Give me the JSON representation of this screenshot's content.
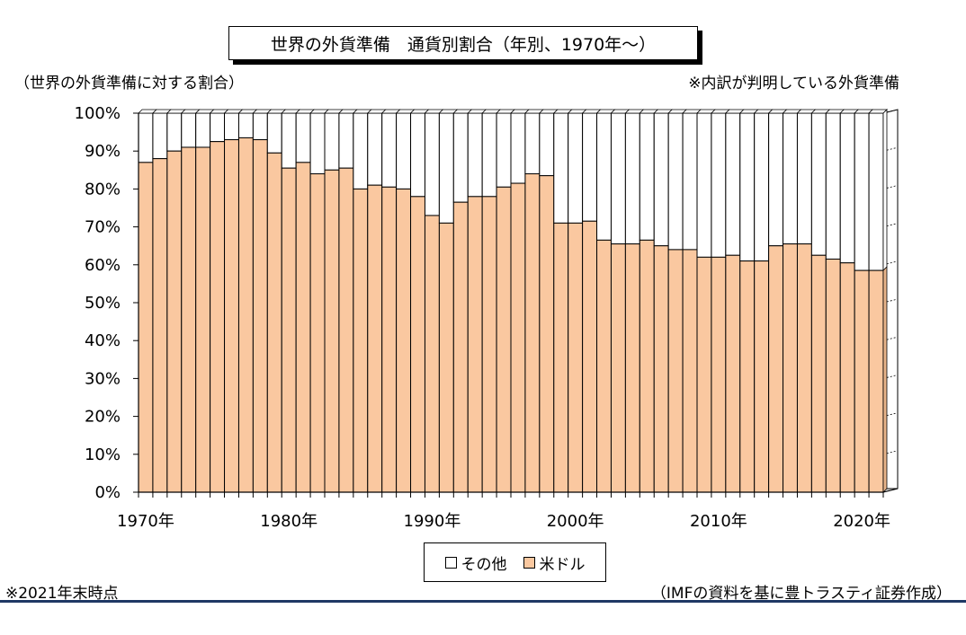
{
  "title": "世界の外貨準備　通貨別割合（年別、1970年～）",
  "subtitle": "（世界の外貨準備に対する割合）",
  "note_right": "※内訳が判明している外貨準備",
  "footnote_left": "※2021年末時点",
  "footnote_right": "（IMFの資料を基に豊トラスティ証券作成）",
  "colors": {
    "usd": "#fac8a0",
    "other": "#ffffff",
    "rule": "#1f3864"
  },
  "chart_data": {
    "type": "bar",
    "stacked": true,
    "normalized_100": true,
    "ylim": [
      0,
      100
    ],
    "yticks": [
      0,
      10,
      20,
      30,
      40,
      50,
      60,
      70,
      80,
      90,
      100
    ],
    "ytick_labels": [
      "0%",
      "10%",
      "20%",
      "30%",
      "40%",
      "50%",
      "60%",
      "70%",
      "80%",
      "90%",
      "100%"
    ],
    "xtick_labels": [
      "1970年",
      "1980年",
      "1990年",
      "2000年",
      "2010年",
      "2020年"
    ],
    "grid": "horizontal dashed (back wall)",
    "legend": "bottom-center",
    "categories": [
      1970,
      1971,
      1972,
      1973,
      1974,
      1975,
      1976,
      1977,
      1978,
      1979,
      1980,
      1981,
      1982,
      1983,
      1984,
      1985,
      1986,
      1987,
      1988,
      1989,
      1990,
      1991,
      1992,
      1993,
      1994,
      1995,
      1996,
      1997,
      1998,
      1999,
      2000,
      2001,
      2002,
      2003,
      2004,
      2005,
      2006,
      2007,
      2008,
      2009,
      2010,
      2011,
      2012,
      2013,
      2014,
      2015,
      2016,
      2017,
      2018,
      2019,
      2020,
      2021
    ],
    "series": [
      {
        "name": "米ドル",
        "values": [
          87,
          88,
          90,
          91,
          91,
          92.5,
          93,
          93.5,
          93,
          89.5,
          85.5,
          87,
          84,
          85,
          85.5,
          80,
          81,
          80.5,
          80,
          78,
          73,
          71,
          76.5,
          78,
          78,
          80.5,
          81.5,
          84,
          83.5,
          71,
          71,
          71.5,
          66.5,
          65.5,
          65.5,
          66.5,
          65,
          64,
          64,
          62,
          62,
          62.5,
          61,
          61,
          65,
          65.5,
          65.5,
          62.5,
          61.5,
          60.5,
          58.5,
          58.5
        ]
      },
      {
        "name": "その他",
        "values": [
          13,
          12,
          10,
          9,
          9,
          7.5,
          7,
          6.5,
          7,
          10.5,
          14.5,
          13,
          16,
          15,
          14.5,
          20,
          19,
          19.5,
          20,
          22,
          27,
          29,
          23.5,
          22,
          22,
          19.5,
          18.5,
          16,
          16.5,
          29,
          29,
          28.5,
          33.5,
          34.5,
          34.5,
          33.5,
          35,
          36,
          36,
          38,
          38,
          37.5,
          39,
          39,
          35,
          34.5,
          34.5,
          37.5,
          38.5,
          39.5,
          41.5,
          41.5
        ]
      }
    ]
  }
}
